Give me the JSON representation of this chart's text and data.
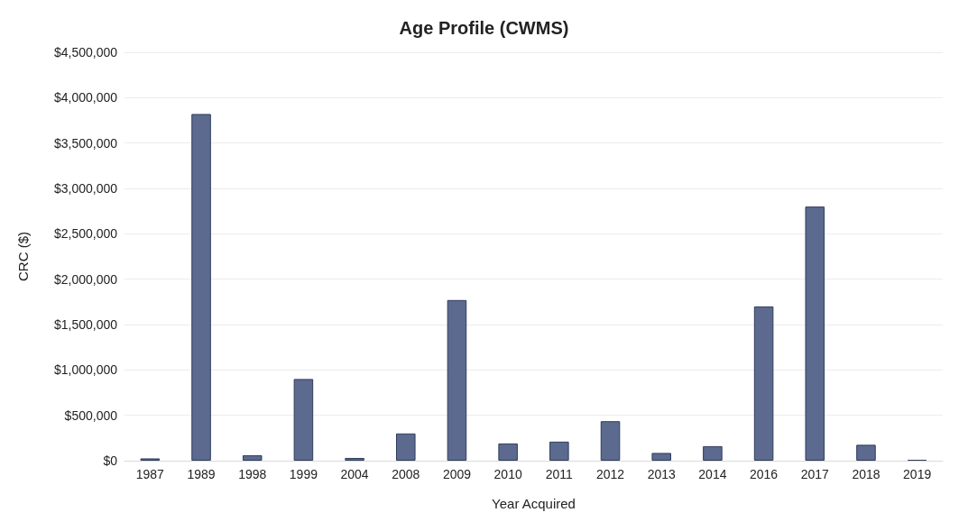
{
  "chart_data": {
    "type": "bar",
    "title": "Age Profile (CWMS)",
    "xlabel": "Year Acquired",
    "ylabel": "CRC ($)",
    "categories": [
      "1987",
      "1989",
      "1998",
      "1999",
      "2004",
      "2008",
      "2009",
      "2010",
      "2011",
      "2012",
      "2013",
      "2014",
      "2016",
      "2017",
      "2018",
      "2019"
    ],
    "values": [
      25000,
      3820000,
      60000,
      900000,
      30000,
      300000,
      1770000,
      190000,
      210000,
      435000,
      85000,
      160000,
      1700000,
      2800000,
      175000,
      10000
    ],
    "color": "#5b6a8e",
    "ylim": [
      0,
      4500000
    ],
    "yticks": [
      {
        "value": 0,
        "label": "$0"
      },
      {
        "value": 500000,
        "label": "$500,000"
      },
      {
        "value": 1000000,
        "label": "$1,000,000"
      },
      {
        "value": 1500000,
        "label": "$1,500,000"
      },
      {
        "value": 2000000,
        "label": "$2,000,000"
      },
      {
        "value": 2500000,
        "label": "$2,500,000"
      },
      {
        "value": 3000000,
        "label": "$3,000,000"
      },
      {
        "value": 3500000,
        "label": "$3,500,000"
      },
      {
        "value": 4000000,
        "label": "$4,000,000"
      },
      {
        "value": 4500000,
        "label": "$4,500,000"
      }
    ],
    "grid": "y"
  }
}
